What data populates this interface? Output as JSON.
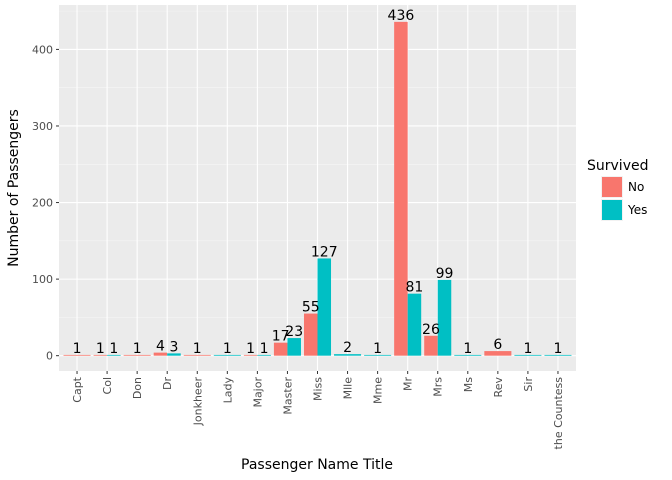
{
  "chart_data": {
    "type": "bar",
    "xlabel": "Passenger Name Title",
    "ylabel": "Number of Passengers",
    "ylim": [
      -20,
      458
    ],
    "yticks": [
      0,
      100,
      200,
      300,
      400
    ],
    "grid": true,
    "legend": {
      "title": "Survived",
      "placement": "right"
    },
    "categories": [
      "Capt",
      "Col",
      "Don",
      "Dr",
      "Jonkheer",
      "Lady",
      "Major",
      "Master",
      "Miss",
      "Mlle",
      "Mme",
      "Mr",
      "Mrs",
      "Ms",
      "Rev",
      "Sir",
      "the Countess"
    ],
    "series": [
      {
        "name": "No",
        "color": "#F8766D",
        "values": [
          1,
          1,
          1,
          4,
          1,
          null,
          1,
          17,
          55,
          null,
          null,
          436,
          26,
          null,
          6,
          null,
          null
        ]
      },
      {
        "name": "Yes",
        "color": "#00BFC4",
        "values": [
          null,
          1,
          null,
          3,
          null,
          1,
          1,
          23,
          127,
          2,
          1,
          81,
          99,
          1,
          null,
          1,
          1
        ]
      }
    ]
  }
}
